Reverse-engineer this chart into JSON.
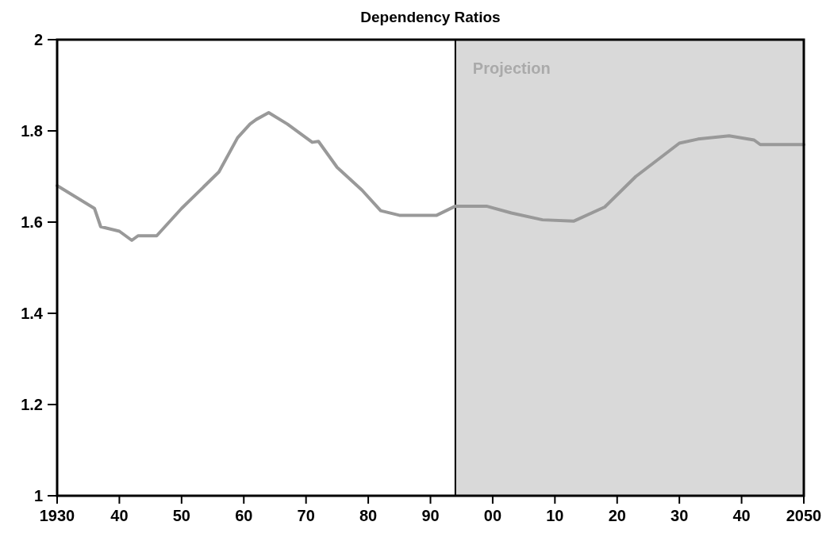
{
  "chart_data": {
    "type": "line",
    "title": "Dependency Ratios",
    "x": [
      1930,
      1936,
      1937,
      1940,
      1942,
      1943,
      1946,
      1950,
      1956,
      1959,
      1961,
      1962,
      1964,
      1967,
      1971,
      1972,
      1975,
      1979,
      1982,
      1985,
      1991,
      1994,
      1999,
      2003,
      2008,
      2013,
      2018,
      2023,
      2030,
      2033,
      2038,
      2042,
      2043,
      2050
    ],
    "series": [
      {
        "color": "#999999",
        "values": [
          1.68,
          1.63,
          1.59,
          1.58,
          1.56,
          1.57,
          1.57,
          1.63,
          1.71,
          1.785,
          1.815,
          1.825,
          1.84,
          1.815,
          1.775,
          1.777,
          1.72,
          1.67,
          1.625,
          1.615,
          1.615,
          1.635,
          1.635,
          1.62,
          1.605,
          1.602,
          1.633,
          1.7,
          1.773,
          1.782,
          1.789,
          1.78,
          1.77,
          1.77
        ]
      }
    ],
    "xlim": [
      1930,
      2050
    ],
    "xticks": [
      1930,
      {
        "value": 1940,
        "label": "40"
      },
      {
        "value": 1950,
        "label": "50"
      },
      {
        "value": 1960,
        "label": "60"
      },
      {
        "value": 1970,
        "label": "70"
      },
      {
        "value": 1980,
        "label": "80"
      },
      {
        "value": 1990,
        "label": "90"
      },
      {
        "value": 2000,
        "label": "00"
      },
      {
        "value": 2010,
        "label": "10"
      },
      {
        "value": 2020,
        "label": "20"
      },
      {
        "value": 2030,
        "label": "30"
      },
      {
        "value": 2040,
        "label": "40"
      },
      2050
    ],
    "ylim": [
      1,
      2
    ],
    "yticks": [
      1,
      1.2,
      1.4,
      1.6,
      1.8,
      2
    ],
    "bands": [
      {
        "axis": "x",
        "from": 1994,
        "to": 2050,
        "label": "Projection",
        "color": "#d9d9d9"
      }
    ],
    "grid": false,
    "marker": "none",
    "line_style": "solid"
  }
}
